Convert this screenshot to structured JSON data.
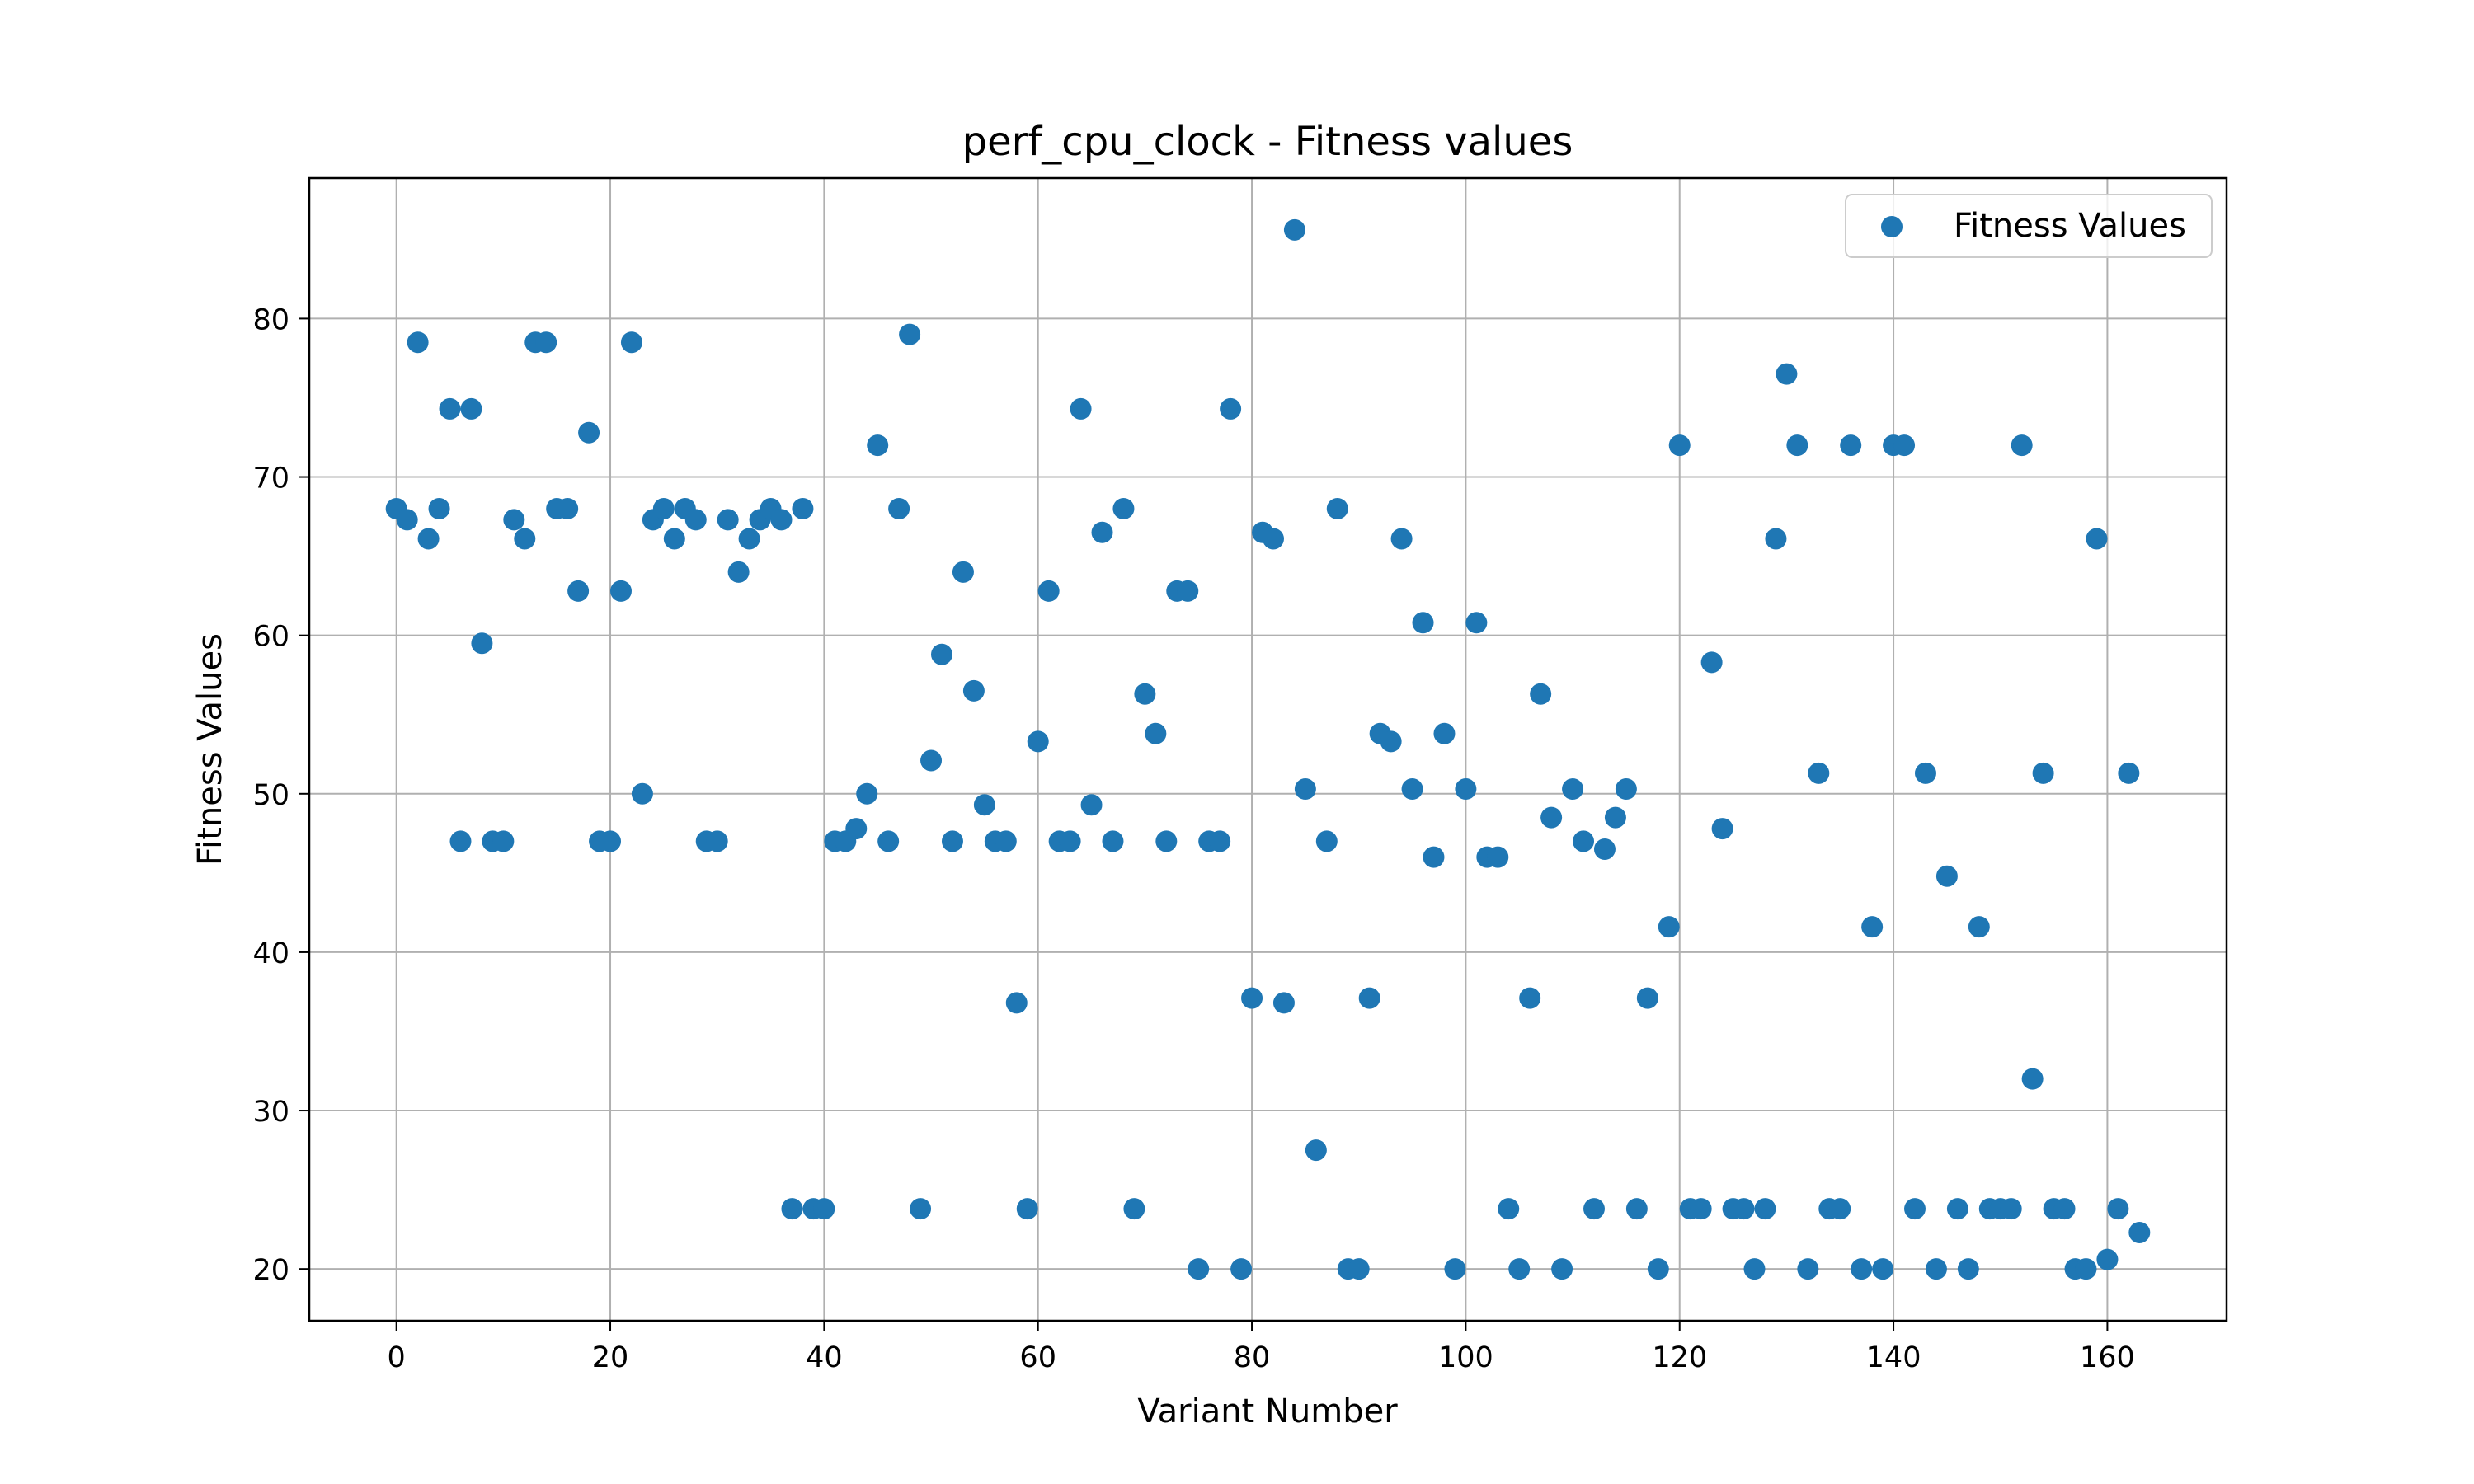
{
  "chart_data": {
    "type": "scatter",
    "title": "perf_cpu_clock - Fitness values",
    "xlabel": "Variant Number",
    "ylabel": "Fitness Values",
    "xlim": [
      -8.15,
      171.15
    ],
    "ylim": [
      16.73,
      88.87
    ],
    "xticks": [
      0,
      20,
      40,
      60,
      80,
      100,
      120,
      140,
      160
    ],
    "yticks": [
      20,
      30,
      40,
      50,
      60,
      70,
      80
    ],
    "grid": true,
    "legend_position": "top-right",
    "marker_color": "#1f77b4",
    "series": [
      {
        "name": "Fitness Values",
        "x": [
          0,
          1,
          2,
          3,
          4,
          5,
          6,
          7,
          8,
          9,
          10,
          11,
          12,
          13,
          14,
          15,
          16,
          17,
          18,
          19,
          20,
          21,
          22,
          23,
          24,
          25,
          26,
          27,
          28,
          29,
          30,
          31,
          32,
          33,
          34,
          35,
          36,
          37,
          38,
          39,
          40,
          41,
          42,
          43,
          44,
          45,
          46,
          47,
          48,
          49,
          50,
          51,
          52,
          53,
          54,
          55,
          56,
          57,
          58,
          59,
          60,
          61,
          62,
          63,
          64,
          65,
          66,
          67,
          68,
          69,
          70,
          71,
          72,
          73,
          74,
          75,
          76,
          77,
          78,
          79,
          80,
          81,
          82,
          83,
          84,
          85,
          86,
          87,
          88,
          89,
          90,
          91,
          92,
          93,
          94,
          95,
          96,
          97,
          98,
          99,
          100,
          101,
          102,
          103,
          104,
          105,
          106,
          107,
          108,
          109,
          110,
          111,
          112,
          113,
          114,
          115,
          116,
          117,
          118,
          119,
          120,
          121,
          122,
          123,
          124,
          125,
          126,
          127,
          128,
          129,
          130,
          131,
          132,
          133,
          134,
          135,
          136,
          137,
          138,
          139,
          140,
          141,
          142,
          143,
          144,
          145,
          146,
          147,
          148,
          149,
          150,
          151,
          152,
          153,
          154,
          155,
          156,
          157,
          158,
          159,
          160,
          161,
          162,
          163
        ],
        "y": [
          68,
          67.3,
          78.5,
          66.1,
          68,
          74.3,
          47,
          74.3,
          59.5,
          47,
          47,
          67.3,
          66.1,
          78.5,
          78.5,
          68,
          68,
          62.8,
          72.8,
          47,
          47,
          62.8,
          78.5,
          50,
          67.3,
          68,
          66.1,
          68,
          67.3,
          47,
          47,
          67.3,
          64,
          66.1,
          67.3,
          68,
          67.3,
          23.8,
          68,
          23.8,
          23.8,
          47,
          47,
          47.8,
          50,
          72,
          47,
          68,
          79,
          23.8,
          52.1,
          58.8,
          47,
          64,
          56.5,
          49.3,
          47,
          47,
          36.8,
          23.8,
          53.3,
          62.8,
          47,
          47,
          74.3,
          49.3,
          66.5,
          47,
          68,
          23.8,
          56.3,
          53.8,
          47,
          62.8,
          62.8,
          20,
          47,
          47,
          74.3,
          20,
          37.1,
          66.5,
          66.1,
          36.8,
          85.6,
          50.3,
          27.5,
          47,
          68,
          20,
          20,
          37.1,
          53.8,
          53.3,
          66.1,
          50.3,
          60.8,
          46,
          53.8,
          20,
          50.3,
          60.8,
          46,
          46,
          23.8,
          20,
          37.1,
          56.3,
          48.5,
          20,
          50.3,
          47,
          23.8,
          46.5,
          48.5,
          50.3,
          23.8,
          37.1,
          20,
          41.6,
          72,
          23.8,
          23.8,
          58.3,
          47.8,
          23.8,
          23.8,
          20,
          23.8,
          66.1,
          76.5,
          72,
          20,
          51.3,
          23.8,
          23.8,
          72,
          20,
          41.6,
          20,
          72,
          72,
          23.8,
          51.3,
          20,
          44.8,
          23.8,
          20,
          41.6,
          23.8,
          23.8,
          23.8,
          72,
          32,
          51.3,
          23.8,
          23.8,
          20,
          20,
          66.1,
          20.6,
          23.8,
          51.3,
          22.3
        ]
      }
    ]
  }
}
